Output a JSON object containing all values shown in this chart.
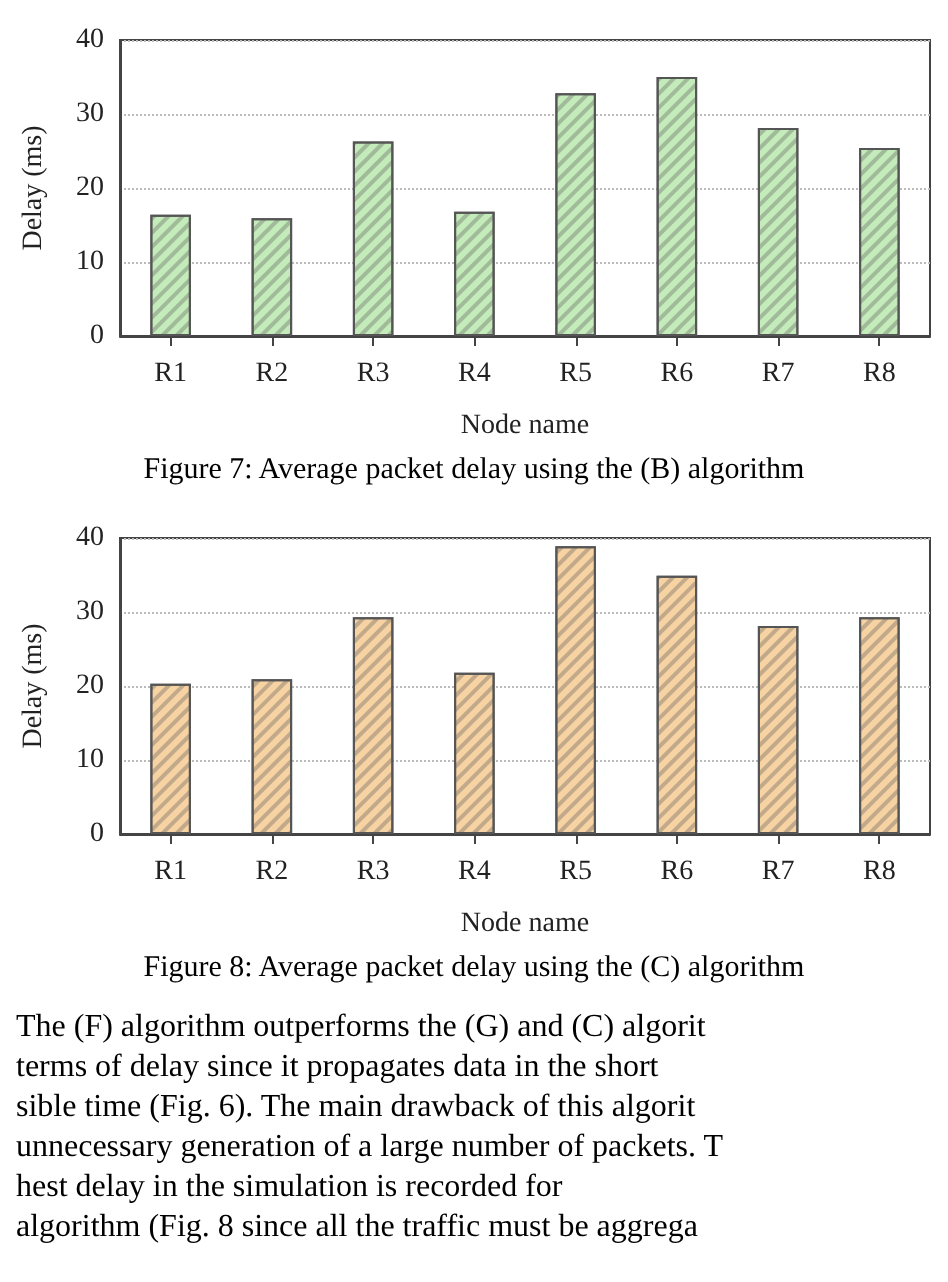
{
  "chart_data": [
    {
      "type": "bar",
      "categories": [
        "R1",
        "R2",
        "R3",
        "R4",
        "R5",
        "R6",
        "R7",
        "R8"
      ],
      "values": [
        16.4,
        15.9,
        26.3,
        16.8,
        32.8,
        35,
        28.1,
        25.4
      ],
      "color": "#c4ecbb",
      "xlabel": "Node name",
      "ylabel": "Delay (ms)",
      "ylim": [
        0,
        40
      ],
      "yticks": [
        0,
        10,
        20,
        30,
        40
      ],
      "grid": "y",
      "annotations": [
        "Figure 7: Average packet delay using the (B) algorithm"
      ]
    },
    {
      "type": "bar",
      "categories": [
        "R1",
        "R2",
        "R3",
        "R4",
        "R5",
        "R6",
        "R7",
        "R8"
      ],
      "values": [
        20.3,
        20.9,
        29.3,
        21.8,
        38.9,
        34.9,
        28.1,
        29.3
      ],
      "color": "#f7d3a3",
      "xlabel": "Node name",
      "ylabel": "Delay (ms)",
      "ylim": [
        0,
        40
      ],
      "yticks": [
        0,
        10,
        20,
        30,
        40
      ],
      "grid": "y",
      "annotations": [
        "Figure 8: Average packet delay using the (C) algorithm",
        "The (F) algorithm outperforms the (G) and (C) algorit",
        "terms of delay since it propagates data in the short",
        "sible time (Fig. 6). The main drawback of this algorit",
        "unnecessary generation of a large number of packets. T",
        "hest delay in the simulation is recorded for",
        "algorithm (Fig. 8 since all the traffic must be aggrega"
      ]
    }
  ]
}
